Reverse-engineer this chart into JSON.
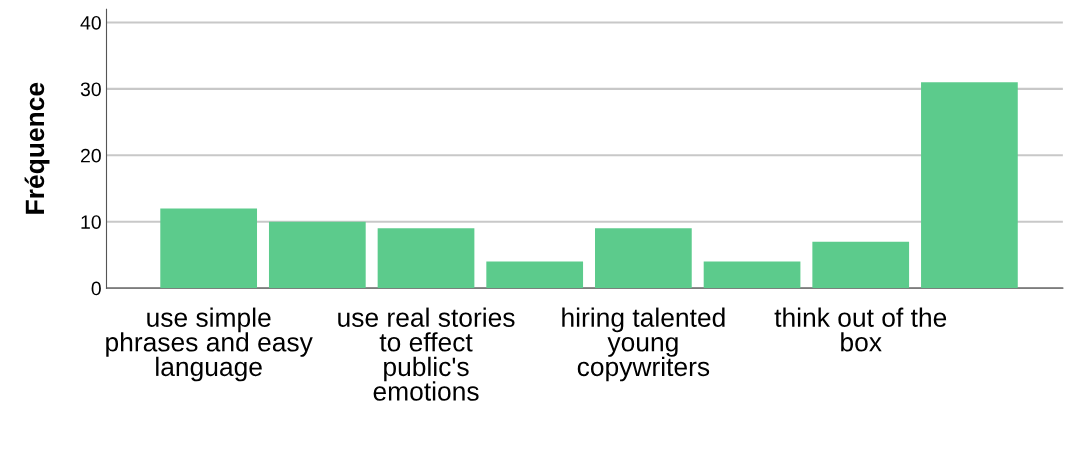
{
  "chart_data": {
    "type": "bar",
    "ylabel": "Fréquence",
    "categories": [
      "use simple phrases and easy language",
      null,
      "use real stories to effect public's emotions",
      null,
      "hiring talented young copywriters",
      null,
      "think out of the box",
      null
    ],
    "values": [
      12,
      10,
      9,
      4,
      9,
      4,
      7,
      31
    ],
    "color": "#5ccb8c",
    "ylim": [
      0,
      42
    ],
    "yticks": [
      0,
      10,
      20,
      30,
      40
    ],
    "grid": "y"
  }
}
